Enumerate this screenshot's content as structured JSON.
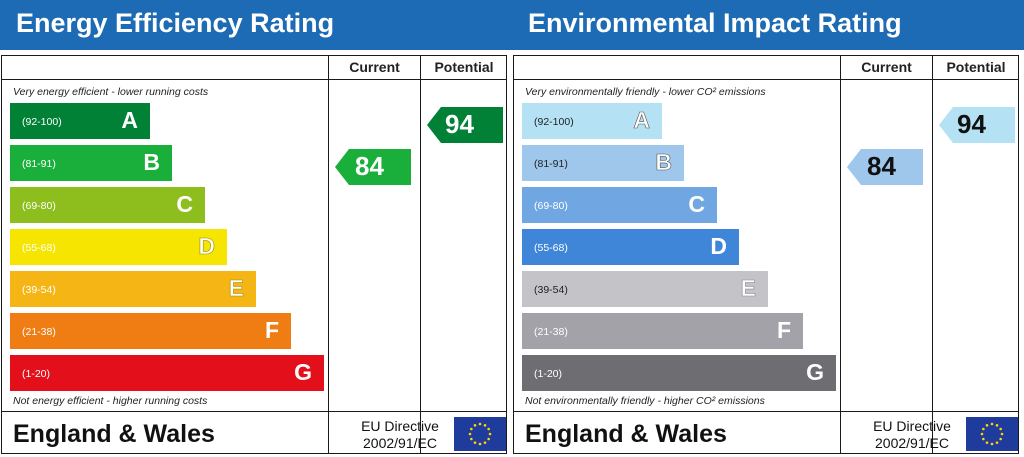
{
  "chart_data": [
    {
      "type": "table",
      "title": "Energy Efficiency Rating",
      "columns": [
        "Current",
        "Potential"
      ],
      "top_note": "Very energy efficient - lower running costs",
      "bottom_note": "Not energy efficient - higher running costs",
      "bands": [
        {
          "letter": "A",
          "range": "(92-100)",
          "color": "#008135"
        },
        {
          "letter": "B",
          "range": "(81-91)",
          "color": "#1aaf3a"
        },
        {
          "letter": "C",
          "range": "(69-80)",
          "color": "#8dbe1d"
        },
        {
          "letter": "D",
          "range": "(55-68)",
          "color": "#f5e500"
        },
        {
          "letter": "E",
          "range": "(39-54)",
          "color": "#f5b615"
        },
        {
          "letter": "F",
          "range": "(21-38)",
          "color": "#ef7d14"
        },
        {
          "letter": "G",
          "range": "(1-20)",
          "color": "#e3101b"
        }
      ],
      "current": {
        "value": 84,
        "band": "B",
        "color": "#1aaf3a"
      },
      "potential": {
        "value": 94,
        "band": "A",
        "color": "#008135"
      },
      "footer": {
        "region": "England & Wales",
        "directive_line1": "EU Directive",
        "directive_line2": "2002/91/EC"
      }
    },
    {
      "type": "table",
      "title": "Environmental Impact Rating",
      "columns": [
        "Current",
        "Potential"
      ],
      "top_note": "Very environmentally friendly - lower CO² emissions",
      "bottom_note": "Not environmentally friendly - higher CO² emissions",
      "bands": [
        {
          "letter": "A",
          "range": "(92-100)",
          "color": "#b4e2f4"
        },
        {
          "letter": "B",
          "range": "(81-91)",
          "color": "#9fc7ec"
        },
        {
          "letter": "C",
          "range": "(69-80)",
          "color": "#70a7e2"
        },
        {
          "letter": "D",
          "range": "(55-68)",
          "color": "#3f86d8"
        },
        {
          "letter": "E",
          "range": "(39-54)",
          "color": "#c4c4c8"
        },
        {
          "letter": "F",
          "range": "(21-38)",
          "color": "#a3a2a8"
        },
        {
          "letter": "G",
          "range": "(1-20)",
          "color": "#6e6e72"
        }
      ],
      "current": {
        "value": 84,
        "band": "B",
        "color": "#9fc7ec"
      },
      "potential": {
        "value": 94,
        "band": "A",
        "color": "#b4e2f4"
      },
      "footer": {
        "region": "England & Wales",
        "directive_line1": "EU Directive",
        "directive_line2": "2002/91/EC"
      }
    }
  ],
  "icons": {
    "flag": "eu-flag-icon"
  }
}
